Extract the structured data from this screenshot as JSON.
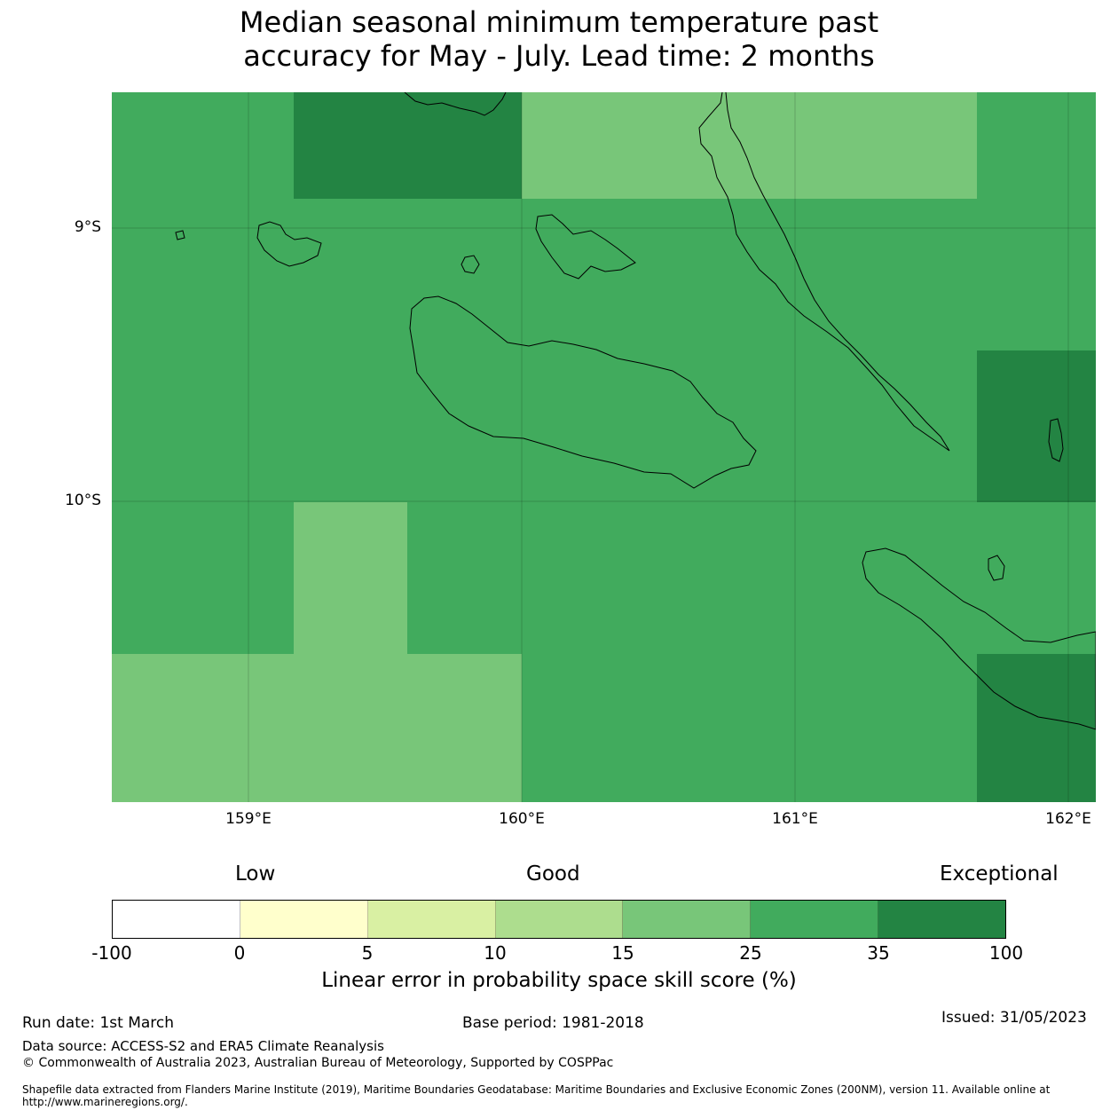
{
  "title": {
    "line1": "Median seasonal minimum temperature past",
    "line2": "accuracy for May - July. Lead time: 2 months"
  },
  "map": {
    "lat_labels": [
      "9°S",
      "10°S"
    ],
    "lon_labels": [
      "159°E",
      "160°E",
      "161°E",
      "162°E"
    ],
    "skill_grid": [
      [
        "25-35",
        "35-100",
        "35-100",
        "15-25",
        "15-25",
        "25-35"
      ],
      [
        "25-35",
        "25-35",
        "25-35",
        "25-35",
        "25-35",
        "25-35"
      ],
      [
        "25-35",
        "25-35",
        "25-35",
        "25-35",
        "25-35",
        "35-100"
      ],
      [
        "25-35",
        "15-25",
        "25-35",
        "25-35",
        "25-35",
        "25-35"
      ],
      [
        "15-25",
        "15-25",
        "15-25",
        "25-35",
        "25-35",
        "35-100"
      ]
    ]
  },
  "legend": {
    "categories": [
      "Low",
      "Good",
      "Exceptional"
    ],
    "colors": [
      "#ffffff",
      "#ffffcc",
      "#d9f0a3",
      "#addd8e",
      "#78c679",
      "#41ab5d",
      "#238443"
    ],
    "ticks": [
      "-100",
      "0",
      "5",
      "10",
      "15",
      "25",
      "35",
      "100"
    ],
    "label": "Linear error in probability space skill score (%)"
  },
  "footer": {
    "run_date": "Run date: 1st March",
    "base_period": "Base period: 1981-2018",
    "issued": "Issued: 31/05/2023",
    "data_source": "Data source: ACCESS-S2 and ERA5 Climate Reanalysis",
    "copyright": "© Commonwealth of Australia 2023, Australian Bureau of Meteorology, Supported by COSPPac",
    "shapefile": "Shapefile data extracted from Flanders Marine Institute (2019), Maritime Boundaries Geodatabase: Maritime Boundaries and Exclusive Economic Zones (200NM), version 11. Available online at http://www.marineregions.org/."
  }
}
